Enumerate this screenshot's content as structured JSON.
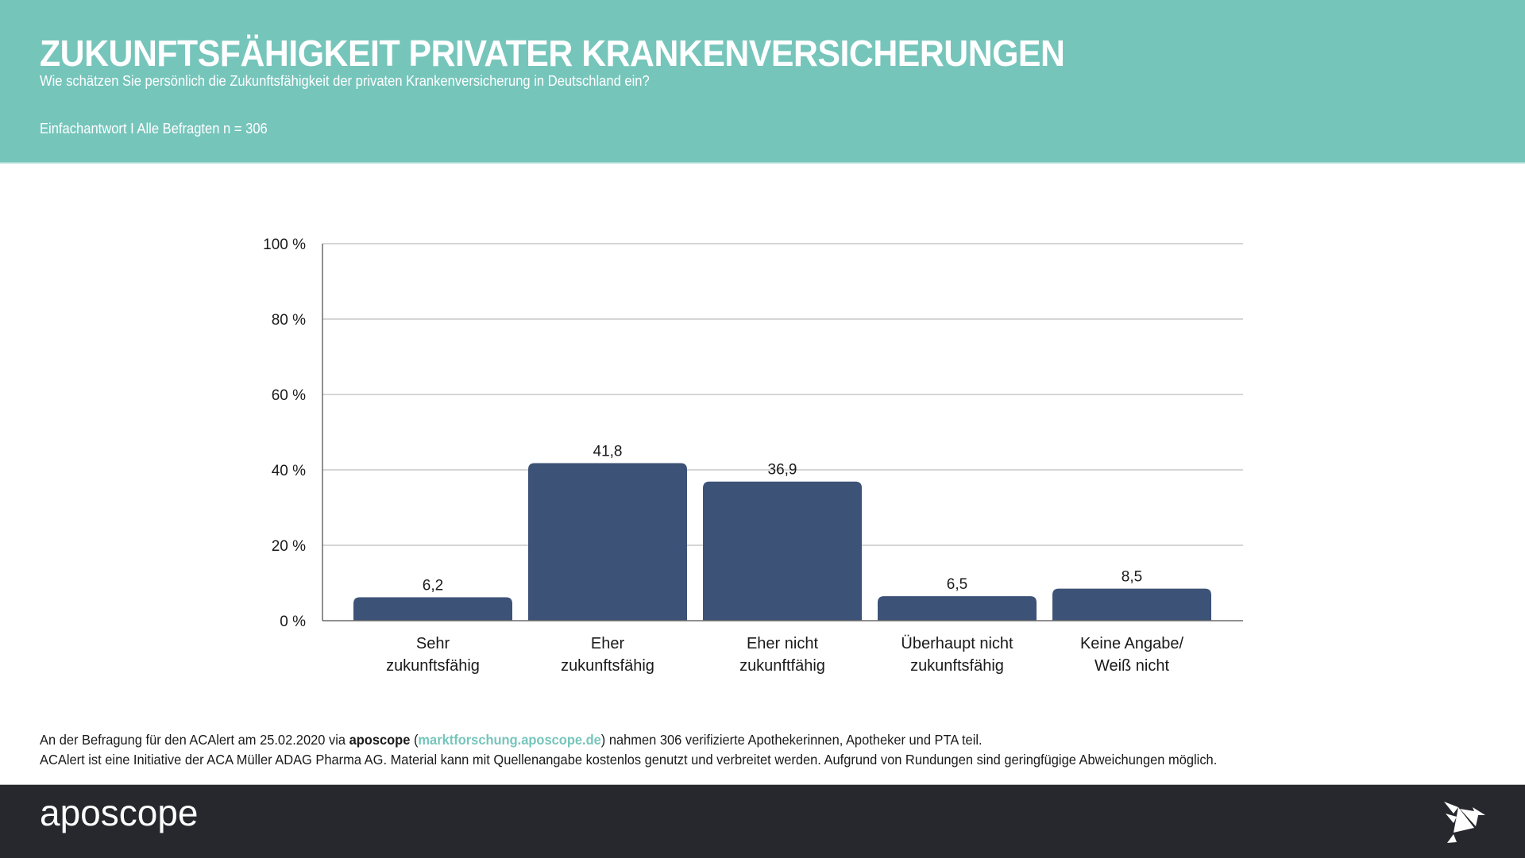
{
  "header": {
    "title": "ZUKUNFTSFÄHIGKEIT PRIVATER KRANKENVERSICHERUNGEN",
    "subtitle": "Wie schätzen Sie persönlich die Zukunftsfähigkeit der privaten Krankenversicherung in Deutschland ein?",
    "sample": "Einfachantwort I Alle Befragten n = 306"
  },
  "colors": {
    "header_bg": "#76c5bb",
    "bar": "#3d5277",
    "footer_bg": "#27282d",
    "link": "#76c5bb"
  },
  "chart_data": {
    "type": "bar",
    "title": "ZUKUNFTSFÄHIGKEIT PRIVATER KRANKENVERSICHERUNGEN",
    "xlabel": "",
    "ylabel": "",
    "categories": [
      [
        "Sehr",
        "zukunftsfähig"
      ],
      [
        "Eher",
        "zukunftsfähig"
      ],
      [
        "Eher nicht",
        "zukunftfähig"
      ],
      [
        "Überhaupt nicht",
        "zukunftsfähig"
      ],
      [
        "Keine Angabe/",
        "Weiß nicht"
      ]
    ],
    "values": [
      6.2,
      41.8,
      36.9,
      6.5,
      8.5
    ],
    "value_labels": [
      "6,2",
      "41,8",
      "36,9",
      "6,5",
      "8,5"
    ],
    "ylim": [
      0,
      100
    ],
    "yticks": [
      0,
      20,
      40,
      60,
      80,
      100
    ],
    "ytick_labels": [
      "0 %",
      "20 %",
      "40 %",
      "60 %",
      "80 %",
      "100 %"
    ],
    "grid": true,
    "legend": "none"
  },
  "notes": {
    "line1_pre": "An der Befragung für den ACAlert am 25.02.2020 via ",
    "line1_brand": "aposcope",
    "line1_paren_open": " (",
    "line1_link": "marktforschung.aposcope.de",
    "line1_post": ") nahmen 306 verifizierte Apothekerinnen, Apotheker und PTA teil.",
    "line2": "ACAlert ist eine Initiative der ACA Müller ADAG Pharma AG. Material kann mit Quellenangabe kostenlos genutzt und verbreitet werden. Aufgrund von Rundungen sind geringfügige Abweichungen möglich."
  },
  "footer": {
    "logo_text": "aposcope",
    "bird_icon": "origami-bird-icon"
  }
}
